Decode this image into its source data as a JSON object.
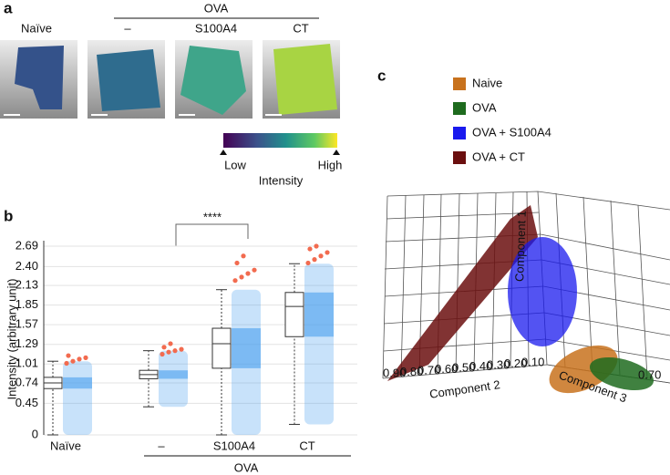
{
  "panel_labels": [
    "a",
    "b",
    "c"
  ],
  "panel_a": {
    "header": "OVA",
    "columns": [
      "Naïve",
      "–",
      "S100A4",
      "CT"
    ],
    "colorbar": {
      "low": "Low",
      "high": "High",
      "title": "Intensity"
    }
  },
  "chart_data": [
    {
      "type": "box",
      "ylabel": "Intensity (arbitrary unit)",
      "categories": [
        "Naïve",
        "–",
        "S100A4",
        "CT"
      ],
      "group_label": "OVA",
      "significance": "****",
      "whisker_low": [
        0,
        0.4,
        0,
        0.15
      ],
      "q1": [
        0.66,
        0.8,
        0.95,
        1.4
      ],
      "median": [
        0.74,
        0.86,
        1.3,
        1.83
      ],
      "q3": [
        0.82,
        0.92,
        1.52,
        2.03
      ],
      "whisker_high": [
        1.05,
        1.2,
        2.07,
        2.44
      ],
      "outliers": [
        [
          1.02,
          1.05,
          1.08,
          1.1,
          1.13
        ],
        [
          1.15,
          1.18,
          1.2,
          1.22,
          1.25,
          1.3
        ],
        [
          2.2,
          2.25,
          2.3,
          2.35,
          2.45,
          2.55
        ],
        [
          2.45,
          2.5,
          2.55,
          2.6,
          2.65,
          2.69
        ]
      ],
      "box_color": "#333333",
      "cloud_color": "#4aa0ee",
      "outlier_color": "#f26b4f",
      "ylim": [
        0,
        2.69
      ],
      "yticks": [
        0,
        0.45,
        0.74,
        1.01,
        1.29,
        1.57,
        1.85,
        2.13,
        {
          "value": 2.4,
          "label": "2.40"
        },
        2.69
      ],
      "grid": true
    },
    {
      "type": "scatter3d",
      "series": [
        {
          "name": "Naive",
          "color": "#c8721d"
        },
        {
          "name": "OVA",
          "color": "#1e6b1e"
        },
        {
          "name": "OVA + S100A4",
          "color": "#1a1aee"
        },
        {
          "name": "OVA + CT",
          "color": "#6b0f0f"
        }
      ],
      "xlabel": "Component 2",
      "ylabel": "Component 3",
      "zlabel": "Component 1",
      "xticks": [
        "0.90",
        "0.80",
        "0.70",
        "0.60",
        "0.50",
        "0.40",
        "0.30",
        "0.20",
        "0.10"
      ],
      "yticks": [
        "0.70"
      ]
    }
  ]
}
